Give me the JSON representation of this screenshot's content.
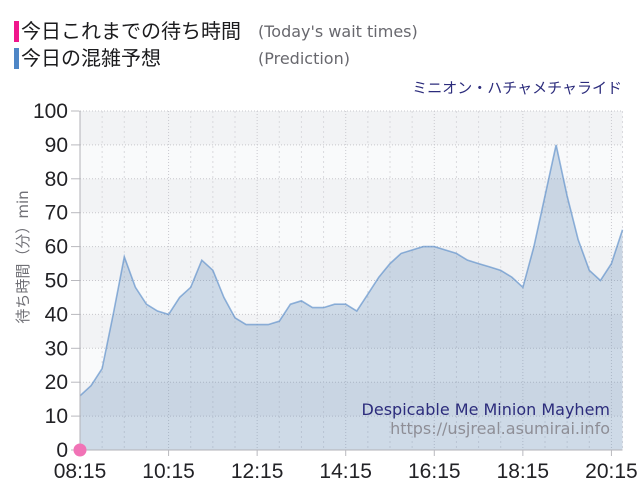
{
  "page": {
    "background": "#ffffff"
  },
  "legend": {
    "items": [
      {
        "swatch_color": "#f0168c",
        "label_ja": "今日これまでの待ち時間",
        "label_en": "(Today's wait times)"
      },
      {
        "swatch_color": "#4e86c6",
        "label_ja": "今日の混雑予想",
        "label_en": "(Prediction)"
      }
    ]
  },
  "title": {
    "text": "ミニオン・ハチャメチャライド",
    "color": "#2c2c7c"
  },
  "watermark": {
    "line1": "Despicable Me Minion Mayhem",
    "line2": "https://usjreal.asumirai.info",
    "line1_color": "#2c2c7c",
    "line2_color": "#8e8e96"
  },
  "chart_data": {
    "type": "area",
    "title": "ミニオン・ハチャメチャライド",
    "xlabel": "",
    "ylabel": "待ち時間（分）min",
    "ylim": [
      0,
      100
    ],
    "xlim_hours": [
      8.25,
      20.5
    ],
    "grid": true,
    "background_bands": [
      "#f2f3f5",
      "#f9fafb"
    ],
    "x_tick_labels": [
      "08:15",
      "10:15",
      "12:15",
      "14:15",
      "16:15",
      "18:15",
      "20:15"
    ],
    "x_tick_hours": [
      8.25,
      10.25,
      12.25,
      14.25,
      16.25,
      18.25,
      20.25
    ],
    "y_ticks": [
      0,
      10,
      20,
      30,
      40,
      50,
      60,
      70,
      80,
      90,
      100
    ],
    "series": [
      {
        "name": "今日これまでの待ち時間",
        "name_en": "Today's wait times",
        "type": "scatter",
        "color": "#f173b6",
        "points": [
          {
            "time": "08:15",
            "value": 0
          }
        ]
      },
      {
        "name": "今日の混雑予想",
        "name_en": "Prediction",
        "type": "area",
        "line_color": "rgba(78,134,198,0.6)",
        "fill_color": "rgba(96,138,181,0.28)",
        "points": [
          {
            "time": "08:15",
            "value": 16
          },
          {
            "time": "08:30",
            "value": 19
          },
          {
            "time": "08:45",
            "value": 24
          },
          {
            "time": "09:00",
            "value": 40
          },
          {
            "time": "09:15",
            "value": 57
          },
          {
            "time": "09:30",
            "value": 48
          },
          {
            "time": "09:45",
            "value": 43
          },
          {
            "time": "10:00",
            "value": 41
          },
          {
            "time": "10:15",
            "value": 40
          },
          {
            "time": "10:30",
            "value": 45
          },
          {
            "time": "10:45",
            "value": 48
          },
          {
            "time": "11:00",
            "value": 56
          },
          {
            "time": "11:15",
            "value": 53
          },
          {
            "time": "11:30",
            "value": 45
          },
          {
            "time": "11:45",
            "value": 39
          },
          {
            "time": "12:00",
            "value": 37
          },
          {
            "time": "12:15",
            "value": 37
          },
          {
            "time": "12:30",
            "value": 37
          },
          {
            "time": "12:45",
            "value": 38
          },
          {
            "time": "13:00",
            "value": 43
          },
          {
            "time": "13:15",
            "value": 44
          },
          {
            "time": "13:30",
            "value": 42
          },
          {
            "time": "13:45",
            "value": 42
          },
          {
            "time": "14:00",
            "value": 43
          },
          {
            "time": "14:15",
            "value": 43
          },
          {
            "time": "14:30",
            "value": 41
          },
          {
            "time": "14:45",
            "value": 46
          },
          {
            "time": "15:00",
            "value": 51
          },
          {
            "time": "15:15",
            "value": 55
          },
          {
            "time": "15:30",
            "value": 58
          },
          {
            "time": "15:45",
            "value": 59
          },
          {
            "time": "16:00",
            "value": 60
          },
          {
            "time": "16:15",
            "value": 60
          },
          {
            "time": "16:30",
            "value": 59
          },
          {
            "time": "16:45",
            "value": 58
          },
          {
            "time": "17:00",
            "value": 56
          },
          {
            "time": "17:15",
            "value": 55
          },
          {
            "time": "17:30",
            "value": 54
          },
          {
            "time": "17:45",
            "value": 53
          },
          {
            "time": "18:00",
            "value": 51
          },
          {
            "time": "18:15",
            "value": 48
          },
          {
            "time": "18:30",
            "value": 60
          },
          {
            "time": "18:45",
            "value": 75
          },
          {
            "time": "19:00",
            "value": 90
          },
          {
            "time": "19:15",
            "value": 75
          },
          {
            "time": "19:30",
            "value": 62
          },
          {
            "time": "19:45",
            "value": 53
          },
          {
            "time": "20:00",
            "value": 50
          },
          {
            "time": "20:15",
            "value": 55
          },
          {
            "time": "20:30",
            "value": 65
          }
        ]
      }
    ]
  }
}
